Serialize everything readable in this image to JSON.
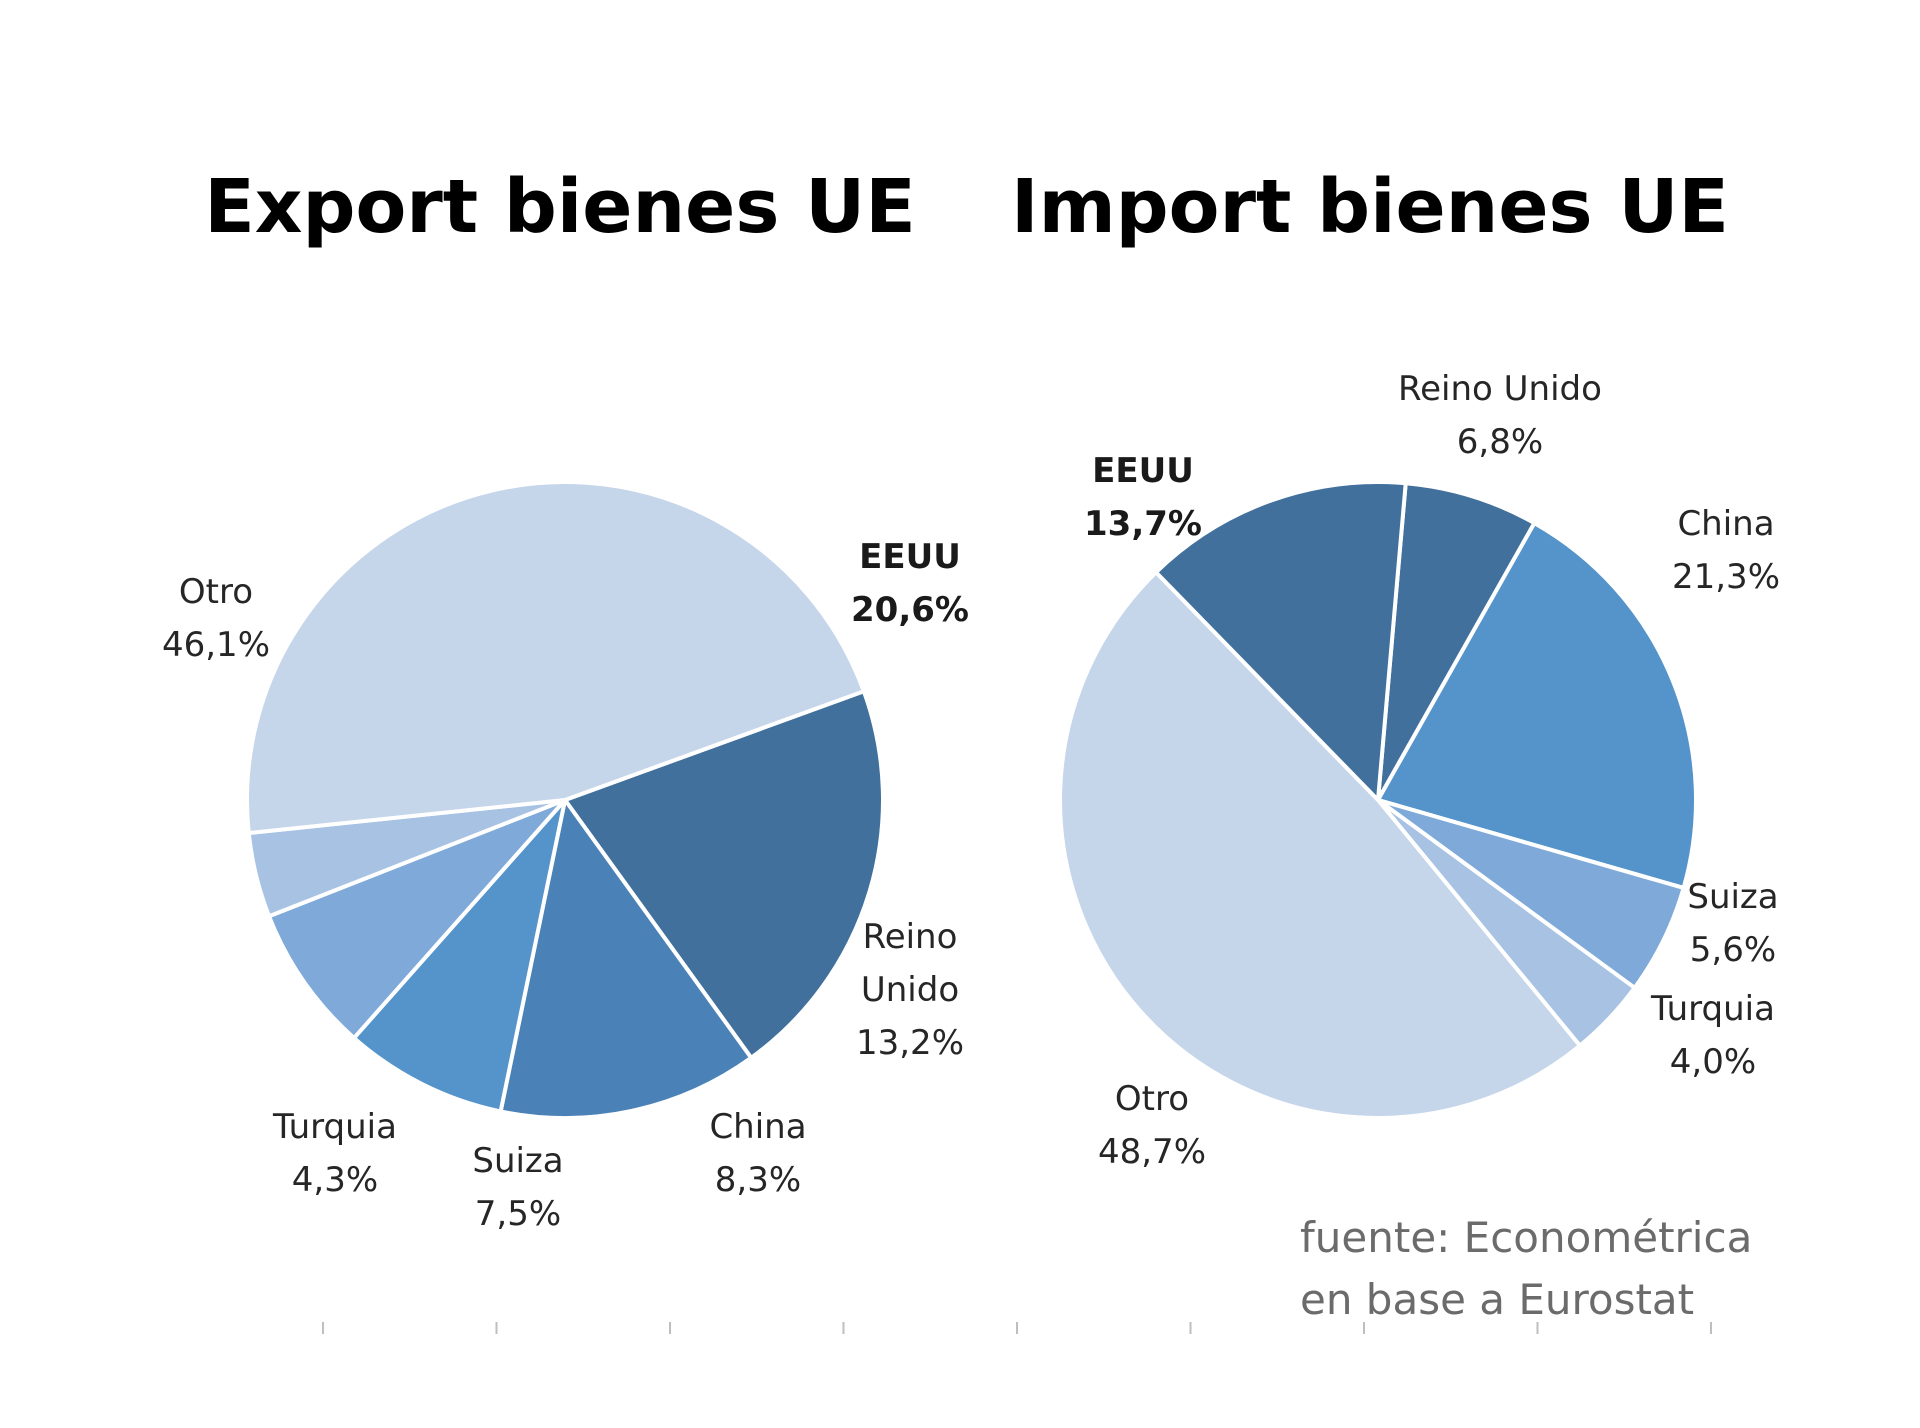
{
  "chart_data": [
    {
      "type": "pie",
      "title": "Export bienes UE",
      "slices": [
        {
          "name": "EEUU",
          "line1": "EEUU",
          "line2": "",
          "value_label": "20,6%",
          "value": 20.6,
          "color": "#41709c",
          "bold": true
        },
        {
          "name": "Reino Unido",
          "line1": "Reino",
          "line2": "Unido",
          "value_label": "13,2%",
          "value": 13.2,
          "color": "#4a82b8",
          "bold": false
        },
        {
          "name": "China",
          "line1": "China",
          "line2": "",
          "value_label": "8,3%",
          "value": 8.3,
          "color": "#5593cb",
          "bold": false
        },
        {
          "name": "Suiza",
          "line1": "Suiza",
          "line2": "",
          "value_label": "7,5%",
          "value": 7.5,
          "color": "#7ea9d8",
          "bold": false
        },
        {
          "name": "Turquia",
          "line1": "Turquia",
          "line2": "",
          "value_label": "4,3%",
          "value": 4.3,
          "color": "#a7c2e3",
          "bold": false
        },
        {
          "name": "Otro",
          "line1": "Otro",
          "line2": "",
          "value_label": "46,1%",
          "value": 46.1,
          "color": "#c5d5ea",
          "bold": false
        }
      ]
    },
    {
      "type": "pie",
      "title": "Import bienes UE",
      "slices": [
        {
          "name": "Reino Unido",
          "line1": "Reino Unido",
          "line2": "",
          "value_label": "6,8%",
          "value": 6.8,
          "color": "#41709c",
          "bold": false
        },
        {
          "name": "China",
          "line1": "China",
          "line2": "",
          "value_label": "21,3%",
          "value": 21.3,
          "color": "#5593cb",
          "bold": false
        },
        {
          "name": "Suiza",
          "line1": "Suiza",
          "line2": "",
          "value_label": "5,6%",
          "value": 5.6,
          "color": "#7ea9d8",
          "bold": false
        },
        {
          "name": "Turquia",
          "line1": "Turquia",
          "line2": "",
          "value_label": "4,0%",
          "value": 4.0,
          "color": "#a7c2e3",
          "bold": false
        },
        {
          "name": "Otro",
          "line1": "Otro",
          "line2": "",
          "value_label": "48,7%",
          "value": 48.7,
          "color": "#c5d5ea",
          "bold": false
        },
        {
          "name": "EEUU",
          "line1": "EEUU",
          "line2": "",
          "value_label": "13,7%",
          "value": 13.7,
          "color": "#41709c",
          "bold": true
        }
      ]
    }
  ],
  "source": {
    "line1": "fuente: Econométrica",
    "line2": "en base a Eurostat"
  }
}
